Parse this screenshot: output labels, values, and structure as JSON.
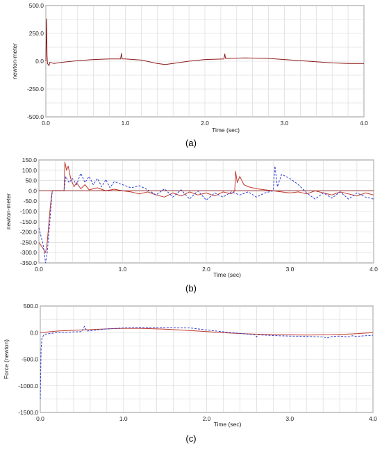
{
  "colors": {
    "background": "#ffffff",
    "grid": "#d4d4d4",
    "axis": "#555555",
    "zero_line": "#8b1a1a",
    "series_red": "#c0392b",
    "series_darkred": "#8b1a1a",
    "series_blue": "#2f3fd6",
    "text": "#222222"
  },
  "chart_data": [
    {
      "type": "line",
      "caption": "(a)",
      "xlabel": "Time (sec)",
      "ylabel": "newton-meter",
      "xlim": [
        0,
        4
      ],
      "ylim": [
        -500,
        500
      ],
      "xticks": [
        "0.0",
        "1.0",
        "2.0",
        "3.0",
        "4.0"
      ],
      "yticks": [
        "500.0",
        "250.0",
        "0.0",
        "-250.0",
        "-500.0"
      ],
      "grid": true,
      "series": [
        {
          "color": "#8b1a1a",
          "style": "solid",
          "points": [
            [
              0,
              0
            ],
            [
              0.01,
              380
            ],
            [
              0.015,
              60
            ],
            [
              0.02,
              -20
            ],
            [
              0.04,
              -40
            ],
            [
              0.05,
              -10
            ],
            [
              0.1,
              -20
            ],
            [
              0.2,
              -10
            ],
            [
              0.4,
              5
            ],
            [
              0.6,
              15
            ],
            [
              0.8,
              20
            ],
            [
              0.94,
              20
            ],
            [
              0.95,
              70
            ],
            [
              0.96,
              20
            ],
            [
              1.0,
              20
            ],
            [
              1.2,
              10
            ],
            [
              1.4,
              -20
            ],
            [
              1.5,
              -30
            ],
            [
              1.6,
              -20
            ],
            [
              1.8,
              0
            ],
            [
              2.0,
              15
            ],
            [
              2.24,
              20
            ],
            [
              2.25,
              65
            ],
            [
              2.26,
              25
            ],
            [
              2.5,
              30
            ],
            [
              2.8,
              25
            ],
            [
              3.0,
              15
            ],
            [
              3.3,
              0
            ],
            [
              3.6,
              -15
            ],
            [
              3.8,
              -20
            ],
            [
              4.0,
              -20
            ]
          ]
        }
      ]
    },
    {
      "type": "line",
      "caption": "(b)",
      "xlabel": "Time (sec)",
      "ylabel": "newton-meter",
      "xlim": [
        0,
        4
      ],
      "ylim": [
        -350,
        150
      ],
      "xticks": [
        "0.0",
        "1.0",
        "2.0",
        "3.0",
        "4.0"
      ],
      "yticks": [
        "150.0",
        "100.0",
        "50.0",
        "0.0",
        "-50.0",
        "-100.0",
        "-150.0",
        "-200.0",
        "-250.0",
        "-300.0",
        "-350.0"
      ],
      "grid": true,
      "series": [
        {
          "color": "#c0392b",
          "style": "solid",
          "points": [
            [
              0,
              -250
            ],
            [
              0.05,
              -280
            ],
            [
              0.08,
              -300
            ],
            [
              0.1,
              -250
            ],
            [
              0.12,
              -150
            ],
            [
              0.14,
              -60
            ],
            [
              0.16,
              0
            ],
            [
              0.3,
              0
            ],
            [
              0.31,
              140
            ],
            [
              0.33,
              100
            ],
            [
              0.35,
              120
            ],
            [
              0.38,
              60
            ],
            [
              0.42,
              20
            ],
            [
              0.45,
              40
            ],
            [
              0.5,
              10
            ],
            [
              0.55,
              30
            ],
            [
              0.6,
              5
            ],
            [
              0.7,
              15
            ],
            [
              0.8,
              0
            ],
            [
              0.9,
              8
            ],
            [
              1.0,
              0
            ],
            [
              1.1,
              -5
            ],
            [
              1.2,
              -15
            ],
            [
              1.3,
              -5
            ],
            [
              1.4,
              -20
            ],
            [
              1.5,
              -30
            ],
            [
              1.6,
              -10
            ],
            [
              1.7,
              -25
            ],
            [
              1.8,
              -5
            ],
            [
              1.9,
              -20
            ],
            [
              2.0,
              -10
            ],
            [
              2.1,
              -25
            ],
            [
              2.2,
              -5
            ],
            [
              2.3,
              -15
            ],
            [
              2.34,
              0
            ],
            [
              2.35,
              95
            ],
            [
              2.37,
              40
            ],
            [
              2.4,
              70
            ],
            [
              2.45,
              30
            ],
            [
              2.5,
              20
            ],
            [
              2.6,
              10
            ],
            [
              2.7,
              5
            ],
            [
              2.8,
              0
            ],
            [
              2.9,
              -5
            ],
            [
              3.0,
              -10
            ],
            [
              3.1,
              -5
            ],
            [
              3.2,
              -15
            ],
            [
              3.3,
              0
            ],
            [
              3.4,
              -10
            ],
            [
              3.5,
              -20
            ],
            [
              3.6,
              -5
            ],
            [
              3.7,
              -15
            ],
            [
              3.8,
              -25
            ],
            [
              3.9,
              -10
            ],
            [
              4.0,
              -20
            ]
          ]
        },
        {
          "color": "#2f3fd6",
          "style": "dashed",
          "points": [
            [
              0,
              -180
            ],
            [
              0.05,
              -260
            ],
            [
              0.08,
              -350
            ],
            [
              0.1,
              -300
            ],
            [
              0.12,
              -200
            ],
            [
              0.14,
              -100
            ],
            [
              0.16,
              0
            ],
            [
              0.3,
              0
            ],
            [
              0.32,
              70
            ],
            [
              0.36,
              40
            ],
            [
              0.4,
              60
            ],
            [
              0.45,
              30
            ],
            [
              0.5,
              85
            ],
            [
              0.55,
              40
            ],
            [
              0.6,
              70
            ],
            [
              0.65,
              30
            ],
            [
              0.7,
              60
            ],
            [
              0.75,
              20
            ],
            [
              0.8,
              55
            ],
            [
              0.85,
              15
            ],
            [
              0.9,
              45
            ],
            [
              1.0,
              30
            ],
            [
              1.1,
              15
            ],
            [
              1.2,
              25
            ],
            [
              1.3,
              5
            ],
            [
              1.4,
              -20
            ],
            [
              1.5,
              10
            ],
            [
              1.6,
              -30
            ],
            [
              1.7,
              5
            ],
            [
              1.8,
              -40
            ],
            [
              1.9,
              0
            ],
            [
              2.0,
              -45
            ],
            [
              2.1,
              -10
            ],
            [
              2.2,
              -30
            ],
            [
              2.3,
              -5
            ],
            [
              2.4,
              -20
            ],
            [
              2.5,
              -5
            ],
            [
              2.6,
              -30
            ],
            [
              2.7,
              -10
            ],
            [
              2.8,
              0
            ],
            [
              2.82,
              120
            ],
            [
              2.85,
              20
            ],
            [
              2.9,
              80
            ],
            [
              3.0,
              60
            ],
            [
              3.1,
              30
            ],
            [
              3.2,
              -10
            ],
            [
              3.3,
              -40
            ],
            [
              3.4,
              -10
            ],
            [
              3.5,
              -35
            ],
            [
              3.6,
              -5
            ],
            [
              3.7,
              -40
            ],
            [
              3.8,
              -10
            ],
            [
              3.9,
              -30
            ],
            [
              4.0,
              -40
            ]
          ]
        },
        {
          "color": "#8b1a1a",
          "style": "solid",
          "points": [
            [
              0,
              0
            ],
            [
              4.0,
              0
            ]
          ]
        }
      ]
    },
    {
      "type": "line",
      "caption": "(c)",
      "xlabel": "Time (sec)",
      "ylabel": "Force (newton)",
      "xlim": [
        0,
        4
      ],
      "ylim": [
        -1500,
        500
      ],
      "xticks": [
        "0.0",
        "1.0",
        "2.0",
        "3.0",
        "4.0"
      ],
      "yticks": [
        "500.0",
        "0.0",
        "-500.0",
        "-1000.0",
        "-1500.0"
      ],
      "grid": true,
      "series": [
        {
          "color": "#c0392b",
          "style": "solid",
          "points": [
            [
              0,
              0
            ],
            [
              0.2,
              30
            ],
            [
              0.5,
              50
            ],
            [
              0.8,
              70
            ],
            [
              1.0,
              80
            ],
            [
              1.2,
              80
            ],
            [
              1.5,
              65
            ],
            [
              1.8,
              40
            ],
            [
              2.0,
              20
            ],
            [
              2.3,
              -10
            ],
            [
              2.6,
              -30
            ],
            [
              2.9,
              -40
            ],
            [
              3.2,
              -45
            ],
            [
              3.5,
              -40
            ],
            [
              3.8,
              -20
            ],
            [
              4.0,
              0
            ]
          ]
        },
        {
          "color": "#2f3fd6",
          "style": "dashed",
          "points": [
            [
              0,
              -1250
            ],
            [
              0.01,
              -300
            ],
            [
              0.02,
              -100
            ],
            [
              0.05,
              -30
            ],
            [
              0.2,
              0
            ],
            [
              0.5,
              20
            ],
            [
              0.53,
              120
            ],
            [
              0.56,
              30
            ],
            [
              0.8,
              70
            ],
            [
              1.0,
              90
            ],
            [
              1.2,
              95
            ],
            [
              1.5,
              95
            ],
            [
              1.8,
              90
            ],
            [
              2.0,
              50
            ],
            [
              2.3,
              0
            ],
            [
              2.58,
              -40
            ],
            [
              2.6,
              -80
            ],
            [
              2.62,
              -40
            ],
            [
              2.8,
              -55
            ],
            [
              3.0,
              -65
            ],
            [
              3.2,
              -70
            ],
            [
              3.4,
              -80
            ],
            [
              3.45,
              -100
            ],
            [
              3.5,
              -75
            ],
            [
              3.6,
              -65
            ],
            [
              3.7,
              -80
            ],
            [
              3.75,
              -60
            ],
            [
              3.8,
              -70
            ],
            [
              3.9,
              -60
            ],
            [
              4.0,
              -50
            ]
          ]
        }
      ]
    }
  ]
}
